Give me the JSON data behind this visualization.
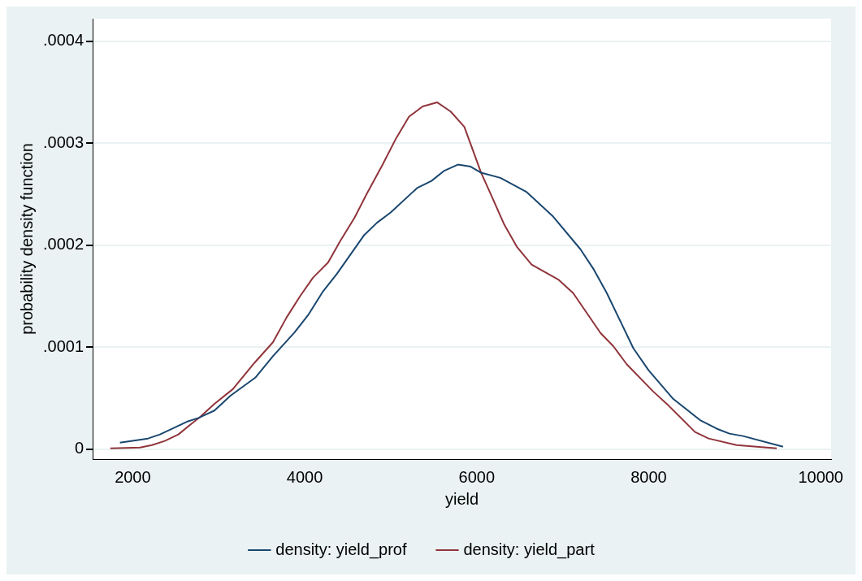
{
  "chart_data": {
    "type": "line",
    "xlabel": "yield",
    "ylabel": "probability density function",
    "xlim": [
      1534,
      10121
    ],
    "ylim": [
      -9.7e-06,
      0.000422
    ],
    "xticks": [
      2000,
      4000,
      6000,
      8000,
      10000
    ],
    "yticks": [
      {
        "value": 0,
        "label": "0"
      },
      {
        "value": 0.0001,
        "label": ".0001"
      },
      {
        "value": 0.0002,
        "label": ".0002"
      },
      {
        "value": 0.0003,
        "label": ".0003"
      },
      {
        "value": 0.0004,
        "label": ".0004"
      }
    ],
    "grid": "y",
    "legend": "bottom",
    "series": [
      {
        "name": "density: yield_prof",
        "color": "#1a476f",
        "x": [
          1851,
          2177,
          2317,
          2643,
          2764,
          2950,
          3136,
          3425,
          3630,
          3881,
          4040,
          4207,
          4375,
          4692,
          4840,
          4999,
          5306,
          5474,
          5623,
          5781,
          5930,
          6051,
          6275,
          6582,
          6889,
          7206,
          7355,
          7513,
          7821,
          7998,
          8286,
          8603,
          8789,
          8938,
          9097,
          9562
        ],
        "values": [
          6.5e-06,
          1.05e-05,
          1.45e-05,
          2.74e-05,
          3.06e-05,
          3.79e-05,
          5.24e-05,
          7.01e-05,
          9.11e-05,
          0.0001145,
          0.0001315,
          0.000154,
          0.000172,
          0.00021,
          0.000222,
          0.000232,
          0.000256,
          0.000263,
          0.000273,
          0.000279,
          0.000277,
          0.000271,
          0.000266,
          0.000252,
          0.000228,
          0.000196,
          0.000177,
          0.000153,
          9.9e-05,
          7.74e-05,
          4.92e-05,
          2.82e-05,
          2.02e-05,
          1.53e-05,
          1.29e-05,
          2.4e-06
        ]
      },
      {
        "name": "density: yield_part",
        "color": "#90353b",
        "x": [
          1739,
          2084,
          2224,
          2373,
          2531,
          2671,
          2782,
          2950,
          3164,
          3416,
          3630,
          3788,
          3946,
          4095,
          4272,
          4412,
          4580,
          4719,
          4906,
          5064,
          5213,
          5371,
          5539,
          5697,
          5856,
          6051,
          6163,
          6321,
          6470,
          6638,
          6954,
          7122,
          7439,
          7588,
          7746,
          8053,
          8230,
          8538,
          8696,
          9022,
          9488
        ],
        "values": [
          8e-07,
          1.6e-06,
          4e-06,
          8.1e-06,
          1.45e-05,
          2.42e-05,
          3.15e-05,
          4.44e-05,
          5.89e-05,
          8.47e-05,
          0.0001048,
          0.000129,
          0.00015,
          0.000168,
          0.000183,
          0.000204,
          0.000227,
          0.00025,
          0.000279,
          0.000305,
          0.000326,
          0.000336,
          0.00034,
          0.000331,
          0.000316,
          0.000271,
          0.00025,
          0.00022,
          0.000198,
          0.000181,
          0.000166,
          0.000153,
          0.000114,
          0.000101,
          8.31e-05,
          5.65e-05,
          4.28e-05,
          1.69e-05,
          1.05e-05,
          4e-06,
          8e-07
        ]
      }
    ]
  }
}
